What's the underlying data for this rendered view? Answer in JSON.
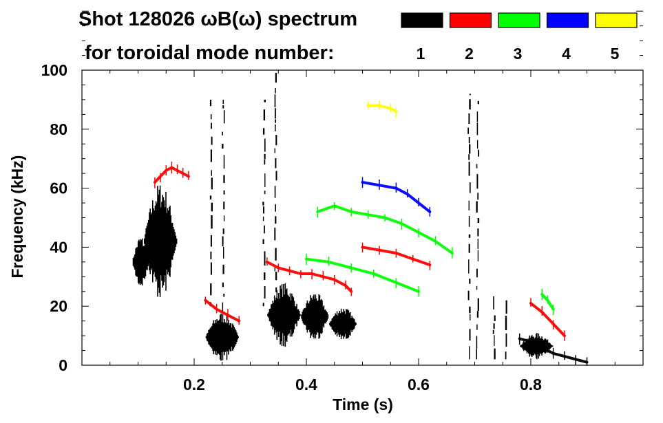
{
  "chart_data": {
    "type": "scatter",
    "title": "Shot 128026 ωB(ω) spectrum",
    "subtitle": "for toroidal mode number:",
    "xlabel": "Time (s)",
    "ylabel": "Frequency (kHz)",
    "xlim": [
      0.0,
      1.0
    ],
    "ylim": [
      0,
      100
    ],
    "x_ticks": [
      0.2,
      0.4,
      0.6,
      0.8
    ],
    "x_tick_labels": [
      "0.2",
      "0.4",
      "0.6",
      "0.8"
    ],
    "y_ticks": [
      0,
      20,
      40,
      60,
      80,
      100
    ],
    "y_tick_labels": [
      "0",
      "20",
      "40",
      "60",
      "80",
      "100"
    ],
    "legend": {
      "placement": "top-right",
      "entries": [
        {
          "n": "1",
          "color": "#000000"
        },
        {
          "n": "2",
          "color": "#ff0000"
        },
        {
          "n": "3",
          "color": "#00ff00"
        },
        {
          "n": "4",
          "color": "#0000ff"
        },
        {
          "n": "5",
          "color": "#ffff00"
        }
      ]
    },
    "blobs": [
      {
        "n": "1",
        "x": [
          0.09,
          0.12
        ],
        "y": [
          26,
          44
        ]
      },
      {
        "n": "1",
        "x": [
          0.11,
          0.17
        ],
        "y": [
          22,
          62
        ]
      },
      {
        "n": "1",
        "x": [
          0.22,
          0.28
        ],
        "y": [
          1,
          18
        ]
      },
      {
        "n": "1",
        "x": [
          0.33,
          0.39
        ],
        "y": [
          6,
          28
        ]
      },
      {
        "n": "1",
        "x": [
          0.39,
          0.44
        ],
        "y": [
          8,
          25
        ]
      },
      {
        "n": "1",
        "x": [
          0.44,
          0.49
        ],
        "y": [
          8,
          20
        ]
      },
      {
        "n": "1",
        "x": [
          0.78,
          0.84
        ],
        "y": [
          2,
          11
        ]
      }
    ],
    "streaks": [
      {
        "n": "1",
        "x": 0.23,
        "y": [
          20,
          90
        ]
      },
      {
        "n": "1",
        "x": 0.252,
        "y": [
          5,
          90
        ]
      },
      {
        "n": "1",
        "x": 0.325,
        "y": [
          20,
          90
        ]
      },
      {
        "n": "1",
        "x": 0.345,
        "y": [
          20,
          100
        ]
      },
      {
        "n": "1",
        "x": 0.69,
        "y": [
          2,
          92
        ]
      },
      {
        "n": "1",
        "x": 0.705,
        "y": [
          2,
          90
        ]
      },
      {
        "n": "1",
        "x": 0.735,
        "y": [
          2,
          25
        ]
      },
      {
        "n": "1",
        "x": 0.755,
        "y": [
          2,
          22
        ]
      }
    ],
    "series": [
      {
        "name": "n=1",
        "n": "1",
        "color": "#000000",
        "x": [
          0.78,
          0.8,
          0.82,
          0.84,
          0.86,
          0.88,
          0.9
        ],
        "y": [
          9,
          8,
          6,
          4,
          3,
          2,
          1
        ]
      },
      {
        "name": "n=2",
        "n": "2",
        "color": "#ff0000",
        "x": [
          0.13,
          0.14,
          0.15,
          0.16,
          0.17,
          0.18,
          0.19
        ],
        "y": [
          62,
          64,
          66,
          67,
          66,
          65,
          64
        ]
      },
      {
        "name": "n=2",
        "n": "2",
        "color": "#ff0000",
        "x": [
          0.33,
          0.35,
          0.37,
          0.39,
          0.41,
          0.43,
          0.45,
          0.47,
          0.48
        ],
        "y": [
          35,
          33,
          32,
          31,
          31,
          30,
          29,
          27,
          25
        ]
      },
      {
        "name": "n=2",
        "n": "2",
        "color": "#ff0000",
        "x": [
          0.22,
          0.24,
          0.26,
          0.28
        ],
        "y": [
          22,
          19,
          17,
          15
        ]
      },
      {
        "name": "n=2",
        "n": "2",
        "color": "#ff0000",
        "x": [
          0.5,
          0.53,
          0.56,
          0.59,
          0.62
        ],
        "y": [
          40,
          39,
          38,
          36,
          34
        ]
      },
      {
        "name": "n=2",
        "n": "2",
        "color": "#ff0000",
        "x": [
          0.8,
          0.82,
          0.84,
          0.86
        ],
        "y": [
          21,
          18,
          14,
          10
        ]
      },
      {
        "name": "n=3",
        "n": "3",
        "color": "#00ff00",
        "x": [
          0.42,
          0.45,
          0.48,
          0.51,
          0.54,
          0.57,
          0.6,
          0.63,
          0.66
        ],
        "y": [
          52,
          54,
          52,
          51,
          50,
          48,
          45,
          42,
          38
        ]
      },
      {
        "name": "n=3",
        "n": "3",
        "color": "#00ff00",
        "x": [
          0.4,
          0.44,
          0.48,
          0.52,
          0.56,
          0.6
        ],
        "y": [
          36,
          35,
          33,
          31,
          28,
          25
        ]
      },
      {
        "name": "n=3",
        "n": "3",
        "color": "#00ff00",
        "x": [
          0.82,
          0.83,
          0.84
        ],
        "y": [
          24,
          22,
          19
        ]
      },
      {
        "name": "n=4",
        "n": "4",
        "color": "#0000ff",
        "x": [
          0.5,
          0.53,
          0.56,
          0.58,
          0.6,
          0.62
        ],
        "y": [
          62,
          61,
          60,
          58,
          55,
          52
        ]
      },
      {
        "name": "n=5",
        "n": "5",
        "color": "#ffff00",
        "x": [
          0.51,
          0.53,
          0.55,
          0.56
        ],
        "y": [
          88,
          88,
          87,
          86
        ]
      }
    ],
    "grid": false
  }
}
